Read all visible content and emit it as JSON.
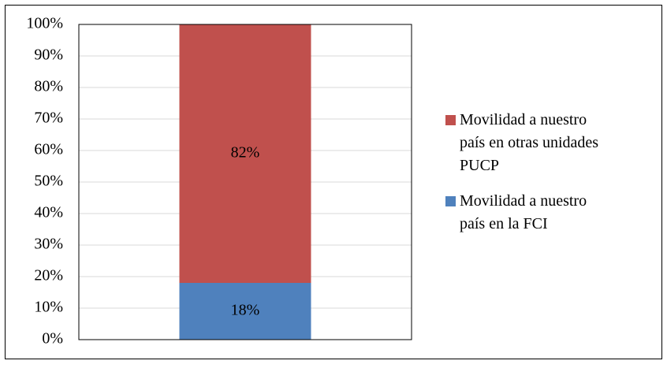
{
  "chart_data": {
    "type": "stacked_bar",
    "categories": [
      null
    ],
    "series": [
      {
        "name": "Movilidad a nuestro país en la  FCI",
        "color": "#4f81bd",
        "values": [
          18
        ],
        "value_labels": [
          "18%"
        ]
      },
      {
        "name": "Movilidad a nuestro país en otras unidades PUCP",
        "color": "#c0504d",
        "values": [
          82
        ],
        "value_labels": [
          "82%"
        ]
      }
    ],
    "ylim": [
      0,
      100
    ],
    "yticks": [
      {
        "value": 0,
        "label": "0%"
      },
      {
        "value": 10,
        "label": "10%"
      },
      {
        "value": 20,
        "label": "20%"
      },
      {
        "value": 30,
        "label": "30%"
      },
      {
        "value": 40,
        "label": "40%"
      },
      {
        "value": 50,
        "label": "50%"
      },
      {
        "value": 60,
        "label": "60%"
      },
      {
        "value": 70,
        "label": "70%"
      },
      {
        "value": 80,
        "label": "80%"
      },
      {
        "value": 90,
        "label": "90%"
      },
      {
        "value": 100,
        "label": "100%"
      }
    ],
    "grid": true,
    "legend": "right"
  }
}
